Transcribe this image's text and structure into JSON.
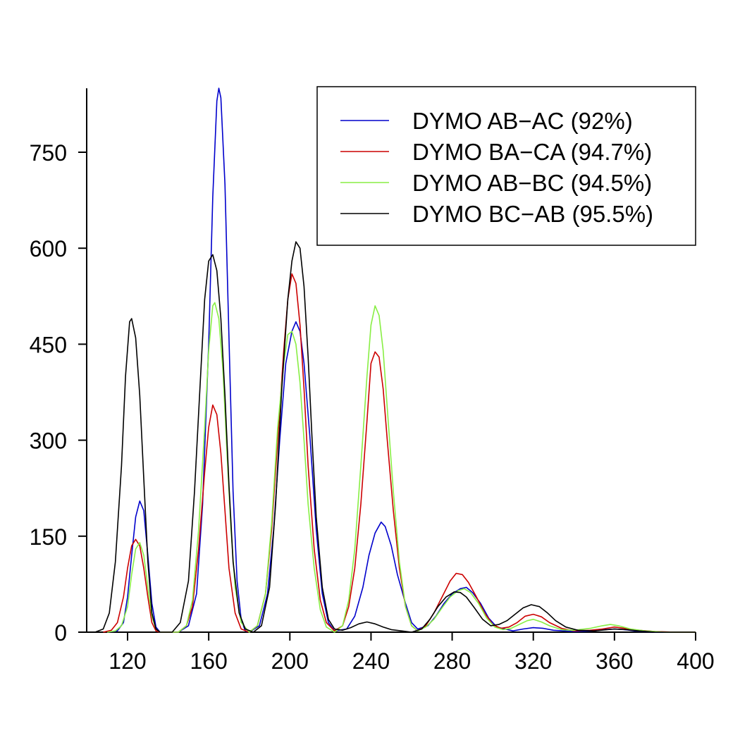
{
  "chart_data": {
    "type": "line",
    "title": "",
    "xlabel": "",
    "ylabel": "",
    "xlim": [
      98,
      400
    ],
    "ylim": [
      0,
      850
    ],
    "xticks": [
      120,
      160,
      200,
      240,
      280,
      320,
      360,
      400
    ],
    "yticks": [
      0,
      150,
      300,
      450,
      600,
      750
    ],
    "grid": false,
    "legend_position": "top-right",
    "series": [
      {
        "name": "DYMO AB−AC (92%)",
        "color": "#0000cc",
        "points": [
          [
            110,
            0
          ],
          [
            115,
            2
          ],
          [
            118,
            15
          ],
          [
            120,
            55
          ],
          [
            122,
            120
          ],
          [
            124,
            180
          ],
          [
            126,
            205
          ],
          [
            128,
            190
          ],
          [
            130,
            120
          ],
          [
            132,
            45
          ],
          [
            134,
            8
          ],
          [
            136,
            0
          ],
          [
            145,
            0
          ],
          [
            150,
            10
          ],
          [
            154,
            60
          ],
          [
            157,
            200
          ],
          [
            160,
            450
          ],
          [
            162,
            680
          ],
          [
            164,
            830
          ],
          [
            165,
            850
          ],
          [
            166,
            835
          ],
          [
            168,
            700
          ],
          [
            170,
            460
          ],
          [
            172,
            220
          ],
          [
            174,
            80
          ],
          [
            176,
            20
          ],
          [
            178,
            2
          ],
          [
            180,
            0
          ],
          [
            185,
            10
          ],
          [
            189,
            60
          ],
          [
            192,
            160
          ],
          [
            195,
            300
          ],
          [
            198,
            420
          ],
          [
            201,
            470
          ],
          [
            203,
            485
          ],
          [
            205,
            470
          ],
          [
            207,
            420
          ],
          [
            210,
            300
          ],
          [
            213,
            160
          ],
          [
            216,
            60
          ],
          [
            219,
            15
          ],
          [
            222,
            2
          ],
          [
            228,
            5
          ],
          [
            232,
            25
          ],
          [
            236,
            70
          ],
          [
            239,
            120
          ],
          [
            242,
            155
          ],
          [
            245,
            172
          ],
          [
            247,
            165
          ],
          [
            250,
            135
          ],
          [
            253,
            90
          ],
          [
            257,
            45
          ],
          [
            260,
            15
          ],
          [
            263,
            5
          ],
          [
            268,
            10
          ],
          [
            272,
            25
          ],
          [
            276,
            45
          ],
          [
            280,
            60
          ],
          [
            284,
            68
          ],
          [
            287,
            70
          ],
          [
            290,
            62
          ],
          [
            294,
            45
          ],
          [
            298,
            22
          ],
          [
            302,
            8
          ],
          [
            310,
            2
          ],
          [
            315,
            5
          ],
          [
            320,
            7
          ],
          [
            325,
            6
          ],
          [
            330,
            3
          ],
          [
            340,
            1
          ],
          [
            350,
            2
          ],
          [
            355,
            4
          ],
          [
            360,
            5
          ],
          [
            365,
            4
          ],
          [
            370,
            2
          ],
          [
            380,
            0
          ],
          [
            400,
            0
          ]
        ]
      },
      {
        "name": "DYMO BA−CA (94.7%)",
        "color": "#cc0000",
        "points": [
          [
            108,
            0
          ],
          [
            112,
            3
          ],
          [
            115,
            15
          ],
          [
            118,
            55
          ],
          [
            120,
            100
          ],
          [
            122,
            135
          ],
          [
            124,
            145
          ],
          [
            126,
            135
          ],
          [
            128,
            100
          ],
          [
            130,
            55
          ],
          [
            132,
            15
          ],
          [
            134,
            2
          ],
          [
            136,
            0
          ],
          [
            145,
            0
          ],
          [
            149,
            10
          ],
          [
            152,
            40
          ],
          [
            155,
            130
          ],
          [
            158,
            250
          ],
          [
            160,
            320
          ],
          [
            162,
            355
          ],
          [
            164,
            340
          ],
          [
            166,
            280
          ],
          [
            168,
            190
          ],
          [
            170,
            100
          ],
          [
            173,
            30
          ],
          [
            176,
            5
          ],
          [
            180,
            0
          ],
          [
            184,
            10
          ],
          [
            188,
            60
          ],
          [
            191,
            160
          ],
          [
            194,
            300
          ],
          [
            197,
            440
          ],
          [
            199,
            520
          ],
          [
            201,
            560
          ],
          [
            203,
            545
          ],
          [
            205,
            480
          ],
          [
            207,
            380
          ],
          [
            209,
            260
          ],
          [
            212,
            130
          ],
          [
            215,
            50
          ],
          [
            218,
            15
          ],
          [
            222,
            2
          ],
          [
            226,
            10
          ],
          [
            229,
            40
          ],
          [
            232,
            100
          ],
          [
            235,
            200
          ],
          [
            238,
            330
          ],
          [
            240,
            420
          ],
          [
            242,
            438
          ],
          [
            244,
            430
          ],
          [
            246,
            380
          ],
          [
            248,
            300
          ],
          [
            251,
            190
          ],
          [
            254,
            100
          ],
          [
            257,
            40
          ],
          [
            260,
            10
          ],
          [
            263,
            2
          ],
          [
            267,
            10
          ],
          [
            271,
            30
          ],
          [
            275,
            55
          ],
          [
            279,
            80
          ],
          [
            282,
            92
          ],
          [
            285,
            90
          ],
          [
            288,
            78
          ],
          [
            292,
            55
          ],
          [
            296,
            30
          ],
          [
            300,
            12
          ],
          [
            304,
            6
          ],
          [
            308,
            8
          ],
          [
            312,
            15
          ],
          [
            316,
            25
          ],
          [
            320,
            28
          ],
          [
            324,
            24
          ],
          [
            328,
            15
          ],
          [
            334,
            6
          ],
          [
            340,
            2
          ],
          [
            348,
            3
          ],
          [
            354,
            5
          ],
          [
            360,
            8
          ],
          [
            365,
            6
          ],
          [
            372,
            3
          ],
          [
            380,
            1
          ],
          [
            390,
            0
          ],
          [
            400,
            0
          ]
        ]
      },
      {
        "name": "DYMO AB−BC (94.5%)",
        "color": "#88ee44",
        "points": [
          [
            110,
            0
          ],
          [
            114,
            2
          ],
          [
            117,
            10
          ],
          [
            120,
            40
          ],
          [
            122,
            90
          ],
          [
            124,
            130
          ],
          [
            126,
            140
          ],
          [
            128,
            120
          ],
          [
            130,
            70
          ],
          [
            132,
            25
          ],
          [
            134,
            5
          ],
          [
            136,
            0
          ],
          [
            145,
            0
          ],
          [
            149,
            10
          ],
          [
            152,
            50
          ],
          [
            155,
            160
          ],
          [
            158,
            320
          ],
          [
            160,
            440
          ],
          [
            162,
            510
          ],
          [
            163,
            515
          ],
          [
            165,
            490
          ],
          [
            167,
            410
          ],
          [
            169,
            280
          ],
          [
            171,
            160
          ],
          [
            173,
            70
          ],
          [
            176,
            15
          ],
          [
            180,
            0
          ],
          [
            184,
            10
          ],
          [
            188,
            60
          ],
          [
            191,
            170
          ],
          [
            194,
            320
          ],
          [
            197,
            420
          ],
          [
            199,
            465
          ],
          [
            201,
            470
          ],
          [
            203,
            450
          ],
          [
            205,
            390
          ],
          [
            207,
            300
          ],
          [
            209,
            200
          ],
          [
            212,
            100
          ],
          [
            215,
            35
          ],
          [
            218,
            8
          ],
          [
            222,
            0
          ],
          [
            226,
            10
          ],
          [
            229,
            50
          ],
          [
            232,
            130
          ],
          [
            235,
            260
          ],
          [
            238,
            400
          ],
          [
            240,
            480
          ],
          [
            242,
            510
          ],
          [
            244,
            495
          ],
          [
            246,
            440
          ],
          [
            248,
            350
          ],
          [
            251,
            220
          ],
          [
            254,
            110
          ],
          [
            257,
            40
          ],
          [
            260,
            10
          ],
          [
            263,
            2
          ],
          [
            267,
            8
          ],
          [
            271,
            20
          ],
          [
            275,
            38
          ],
          [
            279,
            55
          ],
          [
            283,
            65
          ],
          [
            286,
            68
          ],
          [
            289,
            62
          ],
          [
            293,
            45
          ],
          [
            297,
            22
          ],
          [
            301,
            8
          ],
          [
            305,
            4
          ],
          [
            309,
            6
          ],
          [
            313,
            12
          ],
          [
            317,
            18
          ],
          [
            320,
            20
          ],
          [
            324,
            16
          ],
          [
            328,
            10
          ],
          [
            334,
            4
          ],
          [
            340,
            3
          ],
          [
            348,
            6
          ],
          [
            354,
            10
          ],
          [
            358,
            12
          ],
          [
            362,
            10
          ],
          [
            368,
            5
          ],
          [
            375,
            2
          ],
          [
            385,
            0
          ],
          [
            400,
            0
          ]
        ]
      },
      {
        "name": "DYMO BC−AB (95.5%)",
        "color": "#000000",
        "points": [
          [
            104,
            0
          ],
          [
            108,
            5
          ],
          [
            111,
            30
          ],
          [
            114,
            110
          ],
          [
            117,
            260
          ],
          [
            119,
            400
          ],
          [
            121,
            485
          ],
          [
            122,
            490
          ],
          [
            124,
            460
          ],
          [
            126,
            370
          ],
          [
            128,
            240
          ],
          [
            130,
            110
          ],
          [
            132,
            30
          ],
          [
            134,
            5
          ],
          [
            136,
            0
          ],
          [
            142,
            0
          ],
          [
            146,
            15
          ],
          [
            150,
            80
          ],
          [
            153,
            220
          ],
          [
            156,
            400
          ],
          [
            158,
            520
          ],
          [
            160,
            580
          ],
          [
            162,
            590
          ],
          [
            164,
            565
          ],
          [
            166,
            490
          ],
          [
            168,
            370
          ],
          [
            170,
            230
          ],
          [
            172,
            110
          ],
          [
            175,
            30
          ],
          [
            178,
            5
          ],
          [
            182,
            0
          ],
          [
            186,
            10
          ],
          [
            190,
            70
          ],
          [
            193,
            200
          ],
          [
            196,
            380
          ],
          [
            199,
            520
          ],
          [
            201,
            580
          ],
          [
            203,
            610
          ],
          [
            205,
            600
          ],
          [
            207,
            540
          ],
          [
            209,
            430
          ],
          [
            211,
            300
          ],
          [
            213,
            180
          ],
          [
            216,
            70
          ],
          [
            219,
            20
          ],
          [
            222,
            5
          ],
          [
            226,
            3
          ],
          [
            230,
            7
          ],
          [
            234,
            13
          ],
          [
            238,
            16
          ],
          [
            242,
            13
          ],
          [
            246,
            8
          ],
          [
            250,
            4
          ],
          [
            255,
            2
          ],
          [
            260,
            0
          ],
          [
            265,
            5
          ],
          [
            269,
            20
          ],
          [
            273,
            40
          ],
          [
            277,
            55
          ],
          [
            281,
            63
          ],
          [
            284,
            62
          ],
          [
            287,
            55
          ],
          [
            291,
            38
          ],
          [
            295,
            20
          ],
          [
            299,
            10
          ],
          [
            303,
            12
          ],
          [
            307,
            18
          ],
          [
            311,
            28
          ],
          [
            315,
            38
          ],
          [
            319,
            43
          ],
          [
            323,
            40
          ],
          [
            327,
            30
          ],
          [
            331,
            18
          ],
          [
            336,
            8
          ],
          [
            342,
            3
          ],
          [
            350,
            2
          ],
          [
            360,
            5
          ],
          [
            366,
            4
          ],
          [
            372,
            2
          ],
          [
            380,
            0
          ],
          [
            400,
            0
          ]
        ]
      }
    ]
  }
}
